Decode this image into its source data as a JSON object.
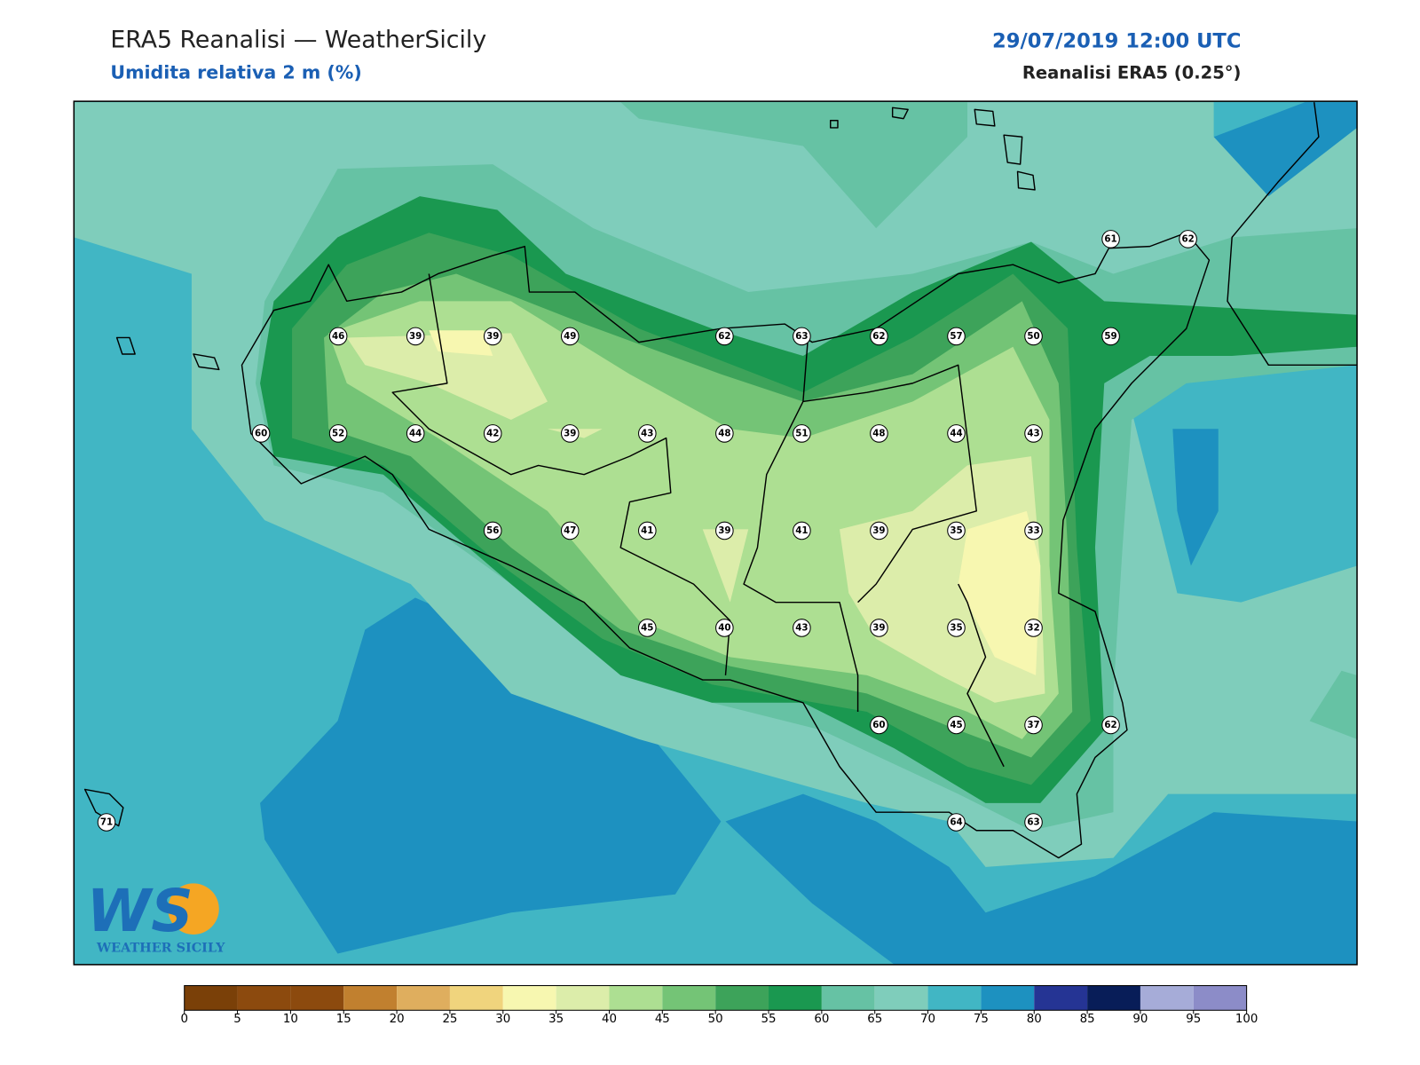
{
  "header": {
    "title": "ERA5 Reanalisi — WeatherSicily",
    "subtitle": "Umidita relativa 2 m (%)",
    "datetime": "29/07/2019 12:00 UTC",
    "source": "Reanalisi ERA5 (0.25°)"
  },
  "logo": {
    "mark": "WS",
    "name": "WEATHER SICILY"
  },
  "stations": [
    61,
    62,
    46,
    39,
    39,
    49,
    62,
    63,
    62,
    57,
    50,
    59,
    60,
    52,
    44,
    42,
    39,
    43,
    48,
    51,
    48,
    44,
    43,
    56,
    47,
    41,
    39,
    41,
    39,
    35,
    33,
    45,
    40,
    43,
    39,
    35,
    32,
    60,
    45,
    37,
    62,
    71,
    64,
    63
  ],
  "colorbar": {
    "levels": [
      0,
      5,
      10,
      15,
      20,
      25,
      30,
      35,
      40,
      45,
      50,
      55,
      60,
      65,
      70,
      75,
      80,
      85,
      90,
      95,
      100
    ],
    "colors": [
      "#7a4008",
      "#8c4a0e",
      "#8c4a0e",
      "#c1802f",
      "#dfae5e",
      "#f0d47d",
      "#f7f7b0",
      "#dcedaa",
      "#addf92",
      "#74c476",
      "#3da35a",
      "#1a9850",
      "#66c2a4",
      "#7fcdbb",
      "#41b6c4",
      "#1d91c0",
      "#253494",
      "#081d58",
      "#a6acd8",
      "#8c8cc8"
    ]
  }
}
